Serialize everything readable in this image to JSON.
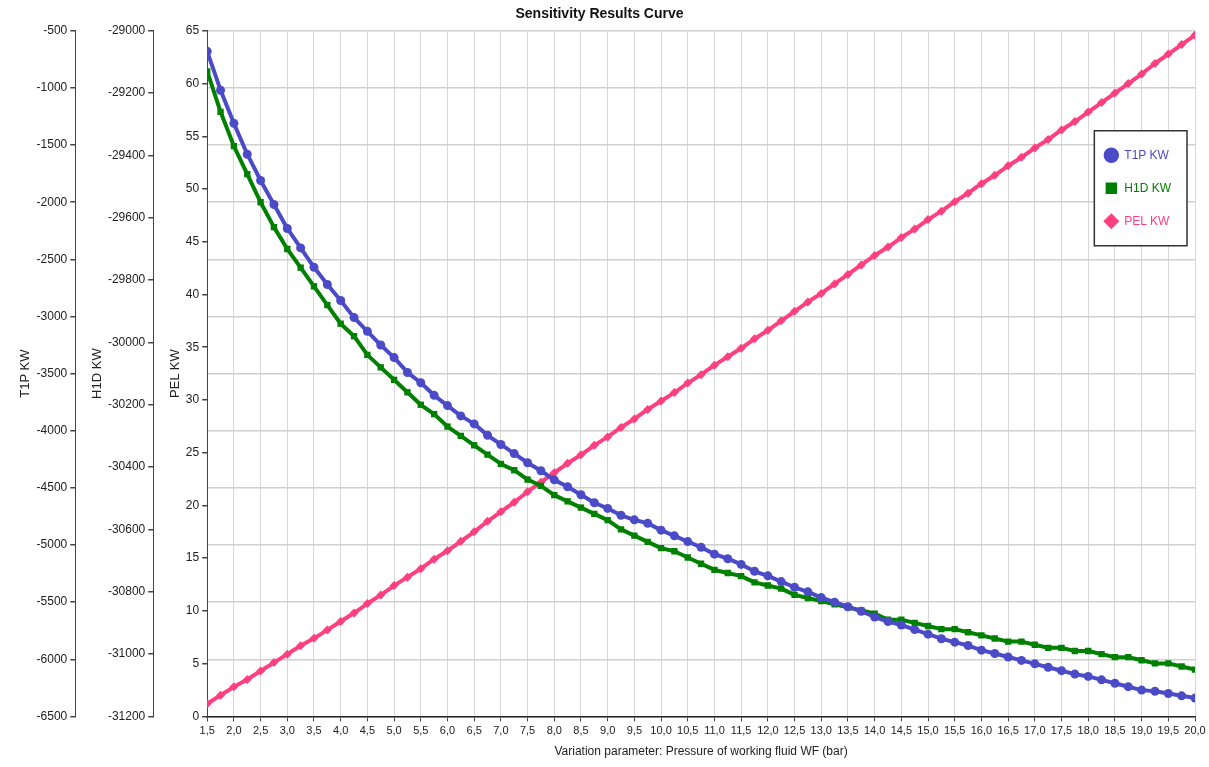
{
  "chart_data": {
    "type": "line",
    "title": "Sensitivity Results Curve",
    "xlabel": "Variation parameter: Pressure of working fluid WF (bar)",
    "ylabel": "T1P KW",
    "y2label": "H1D KW",
    "y3label": "PEL KW",
    "x": [
      1.5,
      1.75,
      2,
      2.25,
      2.5,
      2.75,
      3,
      3.25,
      3.5,
      3.75,
      4,
      4.25,
      4.5,
      4.75,
      5,
      5.25,
      5.5,
      5.75,
      6,
      6.25,
      6.5,
      6.75,
      7,
      7.25,
      7.5,
      7.75,
      8,
      8.25,
      8.5,
      8.75,
      9,
      9.25,
      9.5,
      9.75,
      10,
      10.25,
      10.5,
      10.75,
      11,
      11.25,
      11.5,
      11.75,
      12,
      12.25,
      12.5,
      12.75,
      13,
      13.25,
      13.5,
      13.75,
      14,
      14.25,
      14.5,
      14.75,
      15,
      15.25,
      15.5,
      15.75,
      16,
      16.25,
      16.5,
      16.75,
      17,
      17.25,
      17.5,
      17.75,
      18,
      18.25,
      18.5,
      18.75,
      19,
      19.25,
      19.5,
      19.75,
      20
    ],
    "series": [
      {
        "name": "T1P KW",
        "color": "#4b4bc8",
        "marker": "circle",
        "axis": "y",
        "values": [
          -680,
          -1020,
          -1310,
          -1580,
          -1810,
          -2020,
          -2230,
          -2400,
          -2570,
          -2720,
          -2860,
          -3010,
          -3130,
          -3250,
          -3360,
          -3490,
          -3580,
          -3690,
          -3780,
          -3870,
          -3940,
          -4040,
          -4120,
          -4200,
          -4280,
          -4350,
          -4430,
          -4490,
          -4560,
          -4630,
          -4680,
          -4740,
          -4780,
          -4810,
          -4870,
          -4920,
          -4970,
          -5020,
          -5080,
          -5120,
          -5170,
          -5230,
          -5270,
          -5320,
          -5370,
          -5410,
          -5460,
          -5500,
          -5540,
          -5580,
          -5630,
          -5670,
          -5700,
          -5740,
          -5780,
          -5820,
          -5850,
          -5880,
          -5920,
          -5950,
          -5980,
          -6010,
          -6040,
          -6070,
          -6100,
          -6130,
          -6150,
          -6180,
          -6210,
          -6240,
          -6270,
          -6280,
          -6300,
          -6320,
          -6340
        ]
      },
      {
        "name": "H1D KW",
        "color": "#008000",
        "marker": "square",
        "axis": "y2",
        "values": [
          -29130,
          -29260,
          -29370,
          -29460,
          -29550,
          -29630,
          -29700,
          -29760,
          -29820,
          -29880,
          -29940,
          -29980,
          -30040,
          -30080,
          -30120,
          -30160,
          -30200,
          -30230,
          -30270,
          -30300,
          -30330,
          -30360,
          -30390,
          -30410,
          -30440,
          -30460,
          -30490,
          -30510,
          -30530,
          -30550,
          -30570,
          -30600,
          -30620,
          -30640,
          -30660,
          -30670,
          -30690,
          -30710,
          -30730,
          -30740,
          -30750,
          -30770,
          -30780,
          -30790,
          -30810,
          -30820,
          -30830,
          -30840,
          -30850,
          -30860,
          -30870,
          -30890,
          -30890,
          -30900,
          -30910,
          -30920,
          -30920,
          -30930,
          -30940,
          -30950,
          -30960,
          -30960,
          -30970,
          -30980,
          -30980,
          -30990,
          -30990,
          -31000,
          -31010,
          -31010,
          -31020,
          -31030,
          -31030,
          -31040,
          -31050
        ]
      },
      {
        "name": "PEL KW",
        "color": "#ff4080",
        "marker": "diamond",
        "axis": "y3",
        "values": [
          1.2,
          2.0,
          2.8,
          3.5,
          4.3,
          5.1,
          5.9,
          6.7,
          7.4,
          8.2,
          9.0,
          9.8,
          10.7,
          11.5,
          12.4,
          13.2,
          14.0,
          14.9,
          15.7,
          16.6,
          17.5,
          18.5,
          19.4,
          20.3,
          21.3,
          22.2,
          23.1,
          24.0,
          24.8,
          25.7,
          26.5,
          27.4,
          28.2,
          29.1,
          29.9,
          30.7,
          31.6,
          32.4,
          33.3,
          34.1,
          34.9,
          35.8,
          36.6,
          37.5,
          38.4,
          39.3,
          40.1,
          41.0,
          41.9,
          42.8,
          43.7,
          44.5,
          45.4,
          46.2,
          47.1,
          47.9,
          48.8,
          49.6,
          50.5,
          51.3,
          52.2,
          53.0,
          53.9,
          54.7,
          55.6,
          56.4,
          57.3,
          58.2,
          59.1,
          60.0,
          60.9,
          61.9,
          62.8,
          63.7,
          64.6
        ]
      }
    ],
    "xlim": [
      1.5,
      20
    ],
    "xticks": [
      {
        "value": 1.5,
        "label": "1,5"
      },
      {
        "value": 2,
        "label": "2,0"
      },
      {
        "value": 2.5,
        "label": "2,5"
      },
      {
        "value": 3,
        "label": "3,0"
      },
      {
        "value": 3.5,
        "label": "3,5"
      },
      {
        "value": 4,
        "label": "4,0"
      },
      {
        "value": 4.5,
        "label": "4,5"
      },
      {
        "value": 5,
        "label": "5,0"
      },
      {
        "value": 5.5,
        "label": "5,5"
      },
      {
        "value": 6,
        "label": "6,0"
      },
      {
        "value": 6.5,
        "label": "6,5"
      },
      {
        "value": 7,
        "label": "7,0"
      },
      {
        "value": 7.5,
        "label": "7,5"
      },
      {
        "value": 8,
        "label": "8,0"
      },
      {
        "value": 8.5,
        "label": "8,5"
      },
      {
        "value": 9,
        "label": "9,0"
      },
      {
        "value": 9.5,
        "label": "9,5"
      },
      {
        "value": 10,
        "label": "10,0"
      },
      {
        "value": 10.5,
        "label": "10,5"
      },
      {
        "value": 11,
        "label": "11,0"
      },
      {
        "value": 11.5,
        "label": "11,5"
      },
      {
        "value": 12,
        "label": "12,0"
      },
      {
        "value": 12.5,
        "label": "12,5"
      },
      {
        "value": 13,
        "label": "13,0"
      },
      {
        "value": 13.5,
        "label": "13,5"
      },
      {
        "value": 14,
        "label": "14,0"
      },
      {
        "value": 14.5,
        "label": "14,5"
      },
      {
        "value": 15,
        "label": "15,0"
      },
      {
        "value": 15.5,
        "label": "15,5"
      },
      {
        "value": 16,
        "label": "16,0"
      },
      {
        "value": 16.5,
        "label": "16,5"
      },
      {
        "value": 17,
        "label": "17,0"
      },
      {
        "value": 17.5,
        "label": "17,5"
      },
      {
        "value": 18,
        "label": "18,0"
      },
      {
        "value": 18.5,
        "label": "18,5"
      },
      {
        "value": 19,
        "label": "19,0"
      },
      {
        "value": 19.5,
        "label": "19,5"
      },
      {
        "value": 20,
        "label": "20,0"
      }
    ],
    "ylim": [
      -6500,
      -500
    ],
    "yticks": [
      -6500,
      -6000,
      -5500,
      -5000,
      -4500,
      -4000,
      -3500,
      -3000,
      -2500,
      -2000,
      -1500,
      -1000,
      -500
    ],
    "y2lim": [
      -31200,
      -29000
    ],
    "y2ticks": [
      -31200,
      -31000,
      -30800,
      -30600,
      -30400,
      -30200,
      -30000,
      -29800,
      -29600,
      -29400,
      -29200,
      -29000
    ],
    "y3lim": [
      0,
      65
    ],
    "y3ticks": [
      0,
      5,
      10,
      15,
      20,
      25,
      30,
      35,
      40,
      45,
      50,
      55,
      60,
      65
    ],
    "grid": true,
    "legend": "top right",
    "line_style": "solid"
  }
}
